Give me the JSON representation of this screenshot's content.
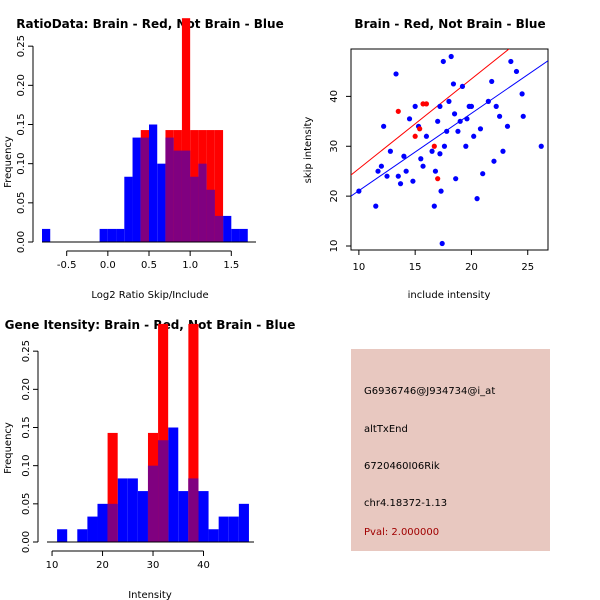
{
  "colors": {
    "brain": "#ff0000",
    "not_brain": "#0000ff",
    "overlap": "#800080",
    "info_bg": "#e8c8c0",
    "pval": "#a00000"
  },
  "chart_data": [
    {
      "type": "bar",
      "subtype": "histogram",
      "title": "RatioData: Brain - Red, Not Brain - Blue",
      "xlabel": "Log2 Ratio Skip/Include",
      "ylabel": "Frequency",
      "xlim": [
        -0.8,
        1.8
      ],
      "ylim": [
        0,
        0.3
      ],
      "xticks": [
        -0.5,
        0.0,
        0.5,
        1.0,
        1.5
      ],
      "xtick_labels": [
        "-0.5",
        "0.0",
        "0.5",
        "1.0",
        "1.5"
      ],
      "yticks": [
        0.0,
        0.05,
        0.1,
        0.15,
        0.2,
        0.25
      ],
      "ytick_labels": [
        "0.00",
        "0.05",
        "0.10",
        "0.15",
        "0.20",
        "0.25"
      ],
      "bin_width": 0.1,
      "series": [
        {
          "name": "Not Brain",
          "color": "#0000ff",
          "bins": [
            [
              -0.75,
              0.0167
            ],
            [
              -0.05,
              0.0167
            ],
            [
              0.05,
              0.0167
            ],
            [
              0.15,
              0.0167
            ],
            [
              0.25,
              0.0833
            ],
            [
              0.35,
              0.1333
            ],
            [
              0.45,
              0.1333
            ],
            [
              0.55,
              0.15
            ],
            [
              0.65,
              0.1
            ],
            [
              0.75,
              0.1333
            ],
            [
              0.85,
              0.1167
            ],
            [
              0.95,
              0.1167
            ],
            [
              1.05,
              0.0833
            ],
            [
              1.15,
              0.1
            ],
            [
              1.25,
              0.0667
            ],
            [
              1.35,
              0.0333
            ],
            [
              1.45,
              0.0333
            ],
            [
              1.55,
              0.0167
            ],
            [
              1.65,
              0.0167
            ]
          ]
        },
        {
          "name": "Brain",
          "color": "#ff0000",
          "bins": [
            [
              0.45,
              0.1429
            ],
            [
              0.75,
              0.1429
            ],
            [
              0.85,
              0.1429
            ],
            [
              0.95,
              0.2857
            ],
            [
              1.05,
              0.1429
            ],
            [
              1.15,
              0.1429
            ],
            [
              1.25,
              0.1429
            ],
            [
              1.35,
              0.1429
            ]
          ]
        }
      ]
    },
    {
      "type": "scatter",
      "title": "Brain - Red, Not Brain - Blue",
      "xlabel": "include intensity",
      "ylabel": "skip intensity",
      "xlim": [
        9.3,
        26.8
      ],
      "ylim": [
        9.2,
        49.5
      ],
      "xticks": [
        10,
        15,
        20,
        25
      ],
      "yticks": [
        10,
        20,
        30,
        40
      ],
      "lines": [
        {
          "name": "Brain fit",
          "color": "#ff0000",
          "intercept": 7.5,
          "slope": 1.8
        },
        {
          "name": "Not Brain fit",
          "color": "#0000ff",
          "intercept": 5.6,
          "slope": 1.55
        }
      ],
      "series": [
        {
          "name": "Not Brain",
          "color": "#0000ff",
          "points": [
            [
              10.0,
              21.0
            ],
            [
              11.5,
              18.0
            ],
            [
              11.7,
              25.0
            ],
            [
              12.0,
              26.0
            ],
            [
              12.2,
              34.0
            ],
            [
              12.5,
              24.0
            ],
            [
              12.8,
              29.0
            ],
            [
              13.3,
              44.5
            ],
            [
              13.5,
              24.0
            ],
            [
              13.7,
              22.5
            ],
            [
              14.0,
              28.0
            ],
            [
              14.2,
              25.0
            ],
            [
              14.5,
              35.5
            ],
            [
              14.8,
              23.0
            ],
            [
              15.0,
              38.0
            ],
            [
              15.3,
              34.0
            ],
            [
              15.5,
              27.5
            ],
            [
              15.7,
              26.0
            ],
            [
              16.0,
              32.0
            ],
            [
              16.5,
              29.0
            ],
            [
              16.7,
              18.0
            ],
            [
              16.8,
              25.0
            ],
            [
              17.0,
              35.0
            ],
            [
              17.2,
              38.0
            ],
            [
              17.2,
              28.5
            ],
            [
              17.3,
              21.0
            ],
            [
              17.4,
              10.5
            ],
            [
              17.5,
              47.0
            ],
            [
              17.6,
              30.0
            ],
            [
              17.8,
              33.0
            ],
            [
              18.0,
              39.0
            ],
            [
              18.2,
              48.0
            ],
            [
              18.4,
              42.5
            ],
            [
              18.5,
              36.5
            ],
            [
              18.6,
              23.5
            ],
            [
              18.8,
              33.0
            ],
            [
              19.0,
              35.0
            ],
            [
              19.2,
              42.0
            ],
            [
              19.5,
              30.0
            ],
            [
              19.6,
              35.5
            ],
            [
              19.8,
              38.0
            ],
            [
              20.0,
              38.0
            ],
            [
              20.2,
              32.0
            ],
            [
              20.5,
              19.5
            ],
            [
              20.8,
              33.5
            ],
            [
              21.0,
              24.5
            ],
            [
              21.5,
              39.0
            ],
            [
              21.8,
              43.0
            ],
            [
              22.0,
              27.0
            ],
            [
              22.2,
              38.0
            ],
            [
              22.5,
              36.0
            ],
            [
              22.8,
              29.0
            ],
            [
              23.2,
              34.0
            ],
            [
              23.5,
              47.0
            ],
            [
              24.0,
              45.0
            ],
            [
              24.5,
              40.5
            ],
            [
              24.6,
              36.0
            ],
            [
              26.2,
              30.0
            ]
          ]
        },
        {
          "name": "Brain",
          "color": "#ff0000",
          "points": [
            [
              13.5,
              37.0
            ],
            [
              15.0,
              32.0
            ],
            [
              15.4,
              33.5
            ],
            [
              15.7,
              38.5
            ],
            [
              16.0,
              38.5
            ],
            [
              17.0,
              23.5
            ],
            [
              16.7,
              30.0
            ]
          ]
        }
      ]
    },
    {
      "type": "bar",
      "subtype": "histogram",
      "title": "Gene Itensity: Brain - Red, Not Brain - Blue",
      "xlabel": "Intensity",
      "ylabel": "Frequency",
      "xlim": [
        9,
        50
      ],
      "ylim": [
        0,
        0.3
      ],
      "xticks": [
        10,
        20,
        30,
        40
      ],
      "yticks": [
        0.0,
        0.05,
        0.1,
        0.15,
        0.2,
        0.25
      ],
      "ytick_labels": [
        "0.00",
        "0.05",
        "0.10",
        "0.15",
        "0.20",
        "0.25"
      ],
      "bin_width": 2,
      "series": [
        {
          "name": "Not Brain",
          "color": "#0000ff",
          "bins": [
            [
              12,
              0.0167
            ],
            [
              16,
              0.0167
            ],
            [
              18,
              0.0333
            ],
            [
              20,
              0.05
            ],
            [
              22,
              0.05
            ],
            [
              24,
              0.0833
            ],
            [
              26,
              0.0833
            ],
            [
              28,
              0.0667
            ],
            [
              30,
              0.1
            ],
            [
              32,
              0.1333
            ],
            [
              34,
              0.15
            ],
            [
              36,
              0.0667
            ],
            [
              38,
              0.0833
            ],
            [
              40,
              0.0667
            ],
            [
              42,
              0.0167
            ],
            [
              44,
              0.0333
            ],
            [
              46,
              0.0333
            ],
            [
              48,
              0.05
            ]
          ]
        },
        {
          "name": "Brain",
          "color": "#ff0000",
          "bins": [
            [
              22,
              0.1429
            ],
            [
              30,
              0.1429
            ],
            [
              32,
              0.2857
            ],
            [
              38,
              0.2857
            ]
          ]
        }
      ]
    }
  ],
  "info": {
    "probe_id": "G6936746@J934734@i_at",
    "event": "altTxEnd",
    "gene": "6720460I06Rik",
    "location": "chr4.18372-1.13",
    "pval": "Pval: 2.000000"
  }
}
